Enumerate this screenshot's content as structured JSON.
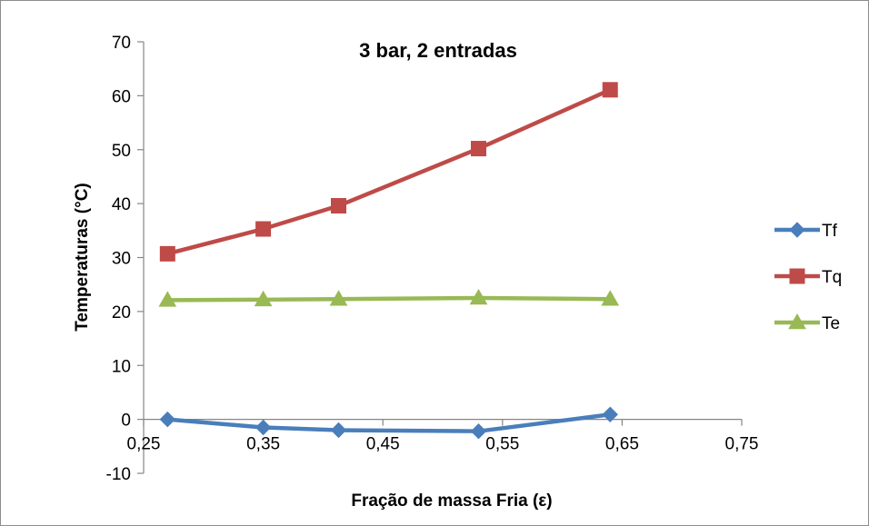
{
  "chart_data": {
    "type": "line",
    "title": "3 bar, 2 entradas",
    "xlabel": "Fração de massa Fria (ε)",
    "ylabel": "Temperaturas (°C)",
    "xlim": [
      0.25,
      0.75
    ],
    "ylim": [
      -10,
      70
    ],
    "x_ticks": [
      "0,25",
      "0,35",
      "0,45",
      "0,55",
      "0,65",
      "0,75"
    ],
    "y_ticks": [
      "-10",
      "0",
      "10",
      "20",
      "30",
      "40",
      "50",
      "60",
      "70"
    ],
    "grid": false,
    "legend_position": "right",
    "series": [
      {
        "name": "Tf",
        "color": "#4a7ebb",
        "marker": "diamond",
        "points": [
          [
            0.27,
            0.0
          ],
          [
            0.35,
            -1.5
          ],
          [
            0.413,
            -2.0
          ],
          [
            0.53,
            -2.2
          ],
          [
            0.64,
            0.9
          ]
        ]
      },
      {
        "name": "Tq",
        "color": "#be4b48",
        "marker": "square",
        "points": [
          [
            0.27,
            30.7
          ],
          [
            0.35,
            35.3
          ],
          [
            0.413,
            39.6
          ],
          [
            0.53,
            50.2
          ],
          [
            0.64,
            61.1
          ]
        ]
      },
      {
        "name": "Te",
        "color": "#98b954",
        "marker": "triangle",
        "points": [
          [
            0.27,
            22.1
          ],
          [
            0.35,
            22.2
          ],
          [
            0.413,
            22.3
          ],
          [
            0.53,
            22.5
          ],
          [
            0.64,
            22.3
          ]
        ]
      }
    ]
  }
}
